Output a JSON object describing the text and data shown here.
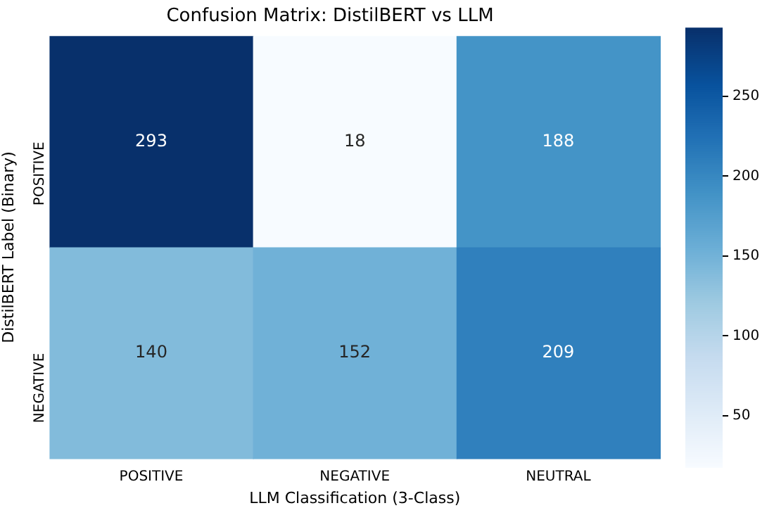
{
  "chart_data": {
    "type": "heatmap",
    "title": "Confusion Matrix: DistilBERT vs LLM",
    "xlabel": "LLM Classification (3-Class)",
    "ylabel": "DistilBERT Label (Binary)",
    "categories": [
      "POSITIVE",
      "NEGATIVE",
      "NEUTRAL"
    ],
    "y_categories": [
      "POSITIVE",
      "NEGATIVE"
    ],
    "cells": [
      [
        293,
        18,
        188
      ],
      [
        140,
        152,
        209
      ]
    ],
    "clim": [
      18,
      293
    ],
    "cticks": [
      50,
      100,
      150,
      200,
      250
    ],
    "data_labels": true
  }
}
